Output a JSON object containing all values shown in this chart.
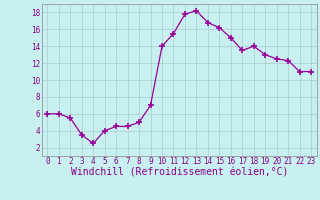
{
  "x": [
    0,
    1,
    2,
    3,
    4,
    5,
    6,
    7,
    8,
    9,
    10,
    11,
    12,
    13,
    14,
    15,
    16,
    17,
    18,
    19,
    20,
    21,
    22,
    23
  ],
  "y": [
    6,
    6,
    5.5,
    3.5,
    2.5,
    4,
    4.5,
    4.5,
    5,
    7,
    14,
    15.5,
    17.8,
    18.2,
    16.8,
    16.2,
    15,
    13.5,
    14,
    13,
    12.5,
    12.3,
    11,
    11
  ],
  "line_color": "#990099",
  "marker": "+",
  "marker_size": 4,
  "marker_lw": 1.2,
  "bg_color": "#c8f0f0",
  "grid_color": "#aacccc",
  "xlabel": "Windchill (Refroidissement éolien,°C)",
  "xlabel_fontsize": 7,
  "xlabel_color": "#880088",
  "xlabel_fontfamily": "monospace",
  "ylim": [
    1,
    19
  ],
  "xlim": [
    -0.5,
    23.5
  ],
  "yticks": [
    2,
    4,
    6,
    8,
    10,
    12,
    14,
    16,
    18
  ],
  "xticks": [
    0,
    1,
    2,
    3,
    4,
    5,
    6,
    7,
    8,
    9,
    10,
    11,
    12,
    13,
    14,
    15,
    16,
    17,
    18,
    19,
    20,
    21,
    22,
    23
  ],
  "tick_fontsize": 5.5,
  "tick_color": "#880088"
}
